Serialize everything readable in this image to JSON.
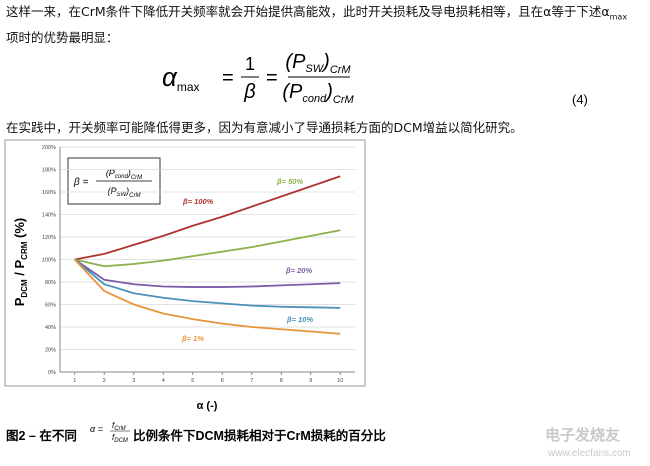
{
  "paragraph1": {
    "before": "这样一来，在CrM条件下降低开关频率就会开始提供高能效，此时开关损耗及导电损耗相等，且在α等于下述α",
    "sub": "max",
    "after": "项时的优势最明显："
  },
  "equation": {
    "lhs": "α",
    "lhs_sub": "max",
    "eq1": "=",
    "one": "1",
    "beta": "β",
    "eq2": "=",
    "num": [
      "(P",
      "SW",
      ")",
      "CrM"
    ],
    "den": [
      "(P",
      "cond",
      ")",
      "CrM"
    ],
    "number": "(4)"
  },
  "paragraph2": "在实践中，开关频率可能降低得更多，因为有意减小了导通损耗方面的DCM增益以简化研究。",
  "chart_data": {
    "type": "line",
    "x": [
      1,
      2,
      3,
      4,
      5,
      6,
      7,
      8,
      9,
      10
    ],
    "xlim": [
      0.5,
      10.5
    ],
    "xticks": [
      1,
      2,
      3,
      4,
      5,
      6,
      7,
      8,
      9,
      10
    ],
    "ylim": [
      0,
      200
    ],
    "yticks": [
      {
        "value": 0,
        "label": "0%"
      },
      {
        "value": 20,
        "label": "20%"
      },
      {
        "value": 40,
        "label": "40%"
      },
      {
        "value": 60,
        "label": "60%"
      },
      {
        "value": 80,
        "label": "80%"
      },
      {
        "value": 100,
        "label": "100%"
      },
      {
        "value": 120,
        "label": "120%"
      },
      {
        "value": 140,
        "label": "140%"
      },
      {
        "value": 160,
        "label": "160%"
      },
      {
        "value": 180,
        "label": "180%"
      },
      {
        "value": 200,
        "label": "200%"
      }
    ],
    "grid": true,
    "x_label": "α (-)",
    "y_label": [
      "P",
      "DCM",
      " / P",
      "CRM",
      " (%)"
    ],
    "annotation": {
      "lhs": "β =",
      "num": [
        "(P",
        "cond",
        ")",
        "CrM"
      ],
      "den": [
        "(P",
        "SW",
        ")",
        "CrM"
      ]
    },
    "series": [
      {
        "name": "β= 100%",
        "color": "#b0332e",
        "values": [
          100,
          105,
          113,
          121,
          130,
          138,
          147,
          156,
          165,
          174
        ]
      },
      {
        "name": "β= 50%",
        "color": "#8db04a",
        "values": [
          100,
          94,
          96,
          99,
          103,
          107,
          111,
          116,
          121,
          126
        ]
      },
      {
        "name": "β= 20%",
        "color": "#7a5ca8",
        "values": [
          100,
          82,
          78,
          76,
          75.5,
          75.5,
          76,
          77,
          78,
          79
        ]
      },
      {
        "name": "β= 10%",
        "color": "#4a90b8",
        "values": [
          100,
          78,
          70,
          66,
          63,
          61,
          59,
          58,
          57.5,
          57
        ]
      },
      {
        "name": "β= 1%",
        "color": "#e8943a",
        "values": [
          100,
          72,
          60,
          52,
          47,
          43,
          40,
          38,
          36,
          34
        ]
      }
    ]
  },
  "caption": {
    "lead": "图2 – 在不同",
    "alpha": "α =",
    "f_num": "f",
    "f_num_sub": "CrM",
    "f_den": "f",
    "f_den_sub": "DCM",
    "rest": "比例条件下DCM损耗相对于CrM损耗的百分比"
  },
  "watermark": {
    "name": "电子发烧友",
    "url": "www.elecfans.com"
  }
}
